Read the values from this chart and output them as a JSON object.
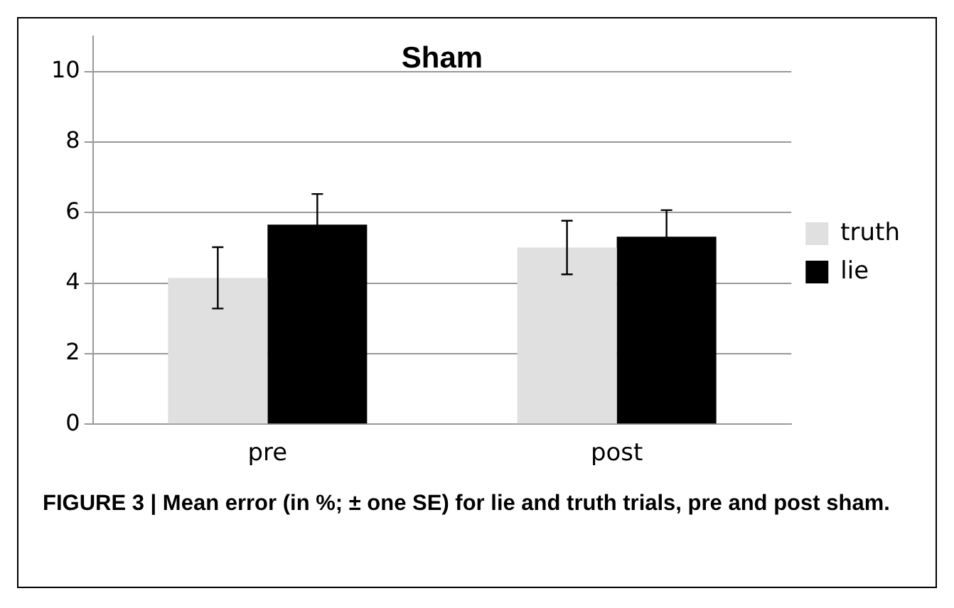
{
  "chart_data": {
    "type": "bar",
    "title": "Sham",
    "categories": [
      "pre",
      "post"
    ],
    "series": [
      {
        "name": "truth",
        "color": "#e0e0e0",
        "values": [
          4.15,
          5.01
        ],
        "errors": [
          0.87,
          0.76
        ]
      },
      {
        "name": "lie",
        "color": "#000000",
        "values": [
          5.66,
          5.32
        ],
        "errors": [
          0.87,
          0.75
        ]
      }
    ],
    "ylim": [
      0,
      11
    ],
    "yticks": [
      0,
      2,
      4,
      6,
      8,
      10
    ],
    "grid": "y",
    "legend": "right",
    "annotations": [
      "FIGURE 3 | Mean error (in %; ± one SE) for lie and truth trials, pre and post sham."
    ]
  }
}
